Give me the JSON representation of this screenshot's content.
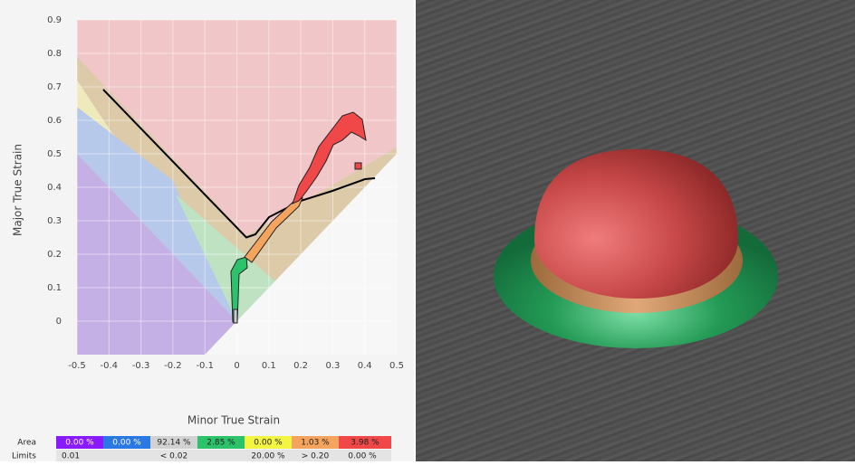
{
  "chart_data": {
    "type": "forming-limit",
    "x_label": "Minor True Strain",
    "y_label": "Major True Strain",
    "xlim": [
      -0.5,
      0.5
    ],
    "ylim": [
      -0.1,
      0.9
    ],
    "xticks": [
      -0.5,
      -0.4,
      -0.3,
      -0.2,
      -0.1,
      0,
      0.1,
      0.2,
      0.3,
      0.4,
      0.5
    ],
    "yticks": [
      0,
      0.1,
      0.2,
      0.3,
      0.4,
      0.5,
      0.6,
      0.7,
      0.8,
      0.9
    ],
    "grid": true
  },
  "legend_table": {
    "area_label": "Area",
    "limits_label": "Limits",
    "area": [
      "0.00 %",
      "0.00 %",
      "92.14 %",
      "2.85 %",
      "0.00 %",
      "1.03 %",
      "3.98 %"
    ],
    "colors": [
      "#8a1aff",
      "#2a78e4",
      "#d2d2d2",
      "#2cc26a",
      "#f4f442",
      "#f5a45e",
      "#f04848"
    ],
    "limits": [
      "0.01",
      "< 0.02",
      "20.00 %",
      "> 0.20",
      "0.00 %"
    ]
  }
}
